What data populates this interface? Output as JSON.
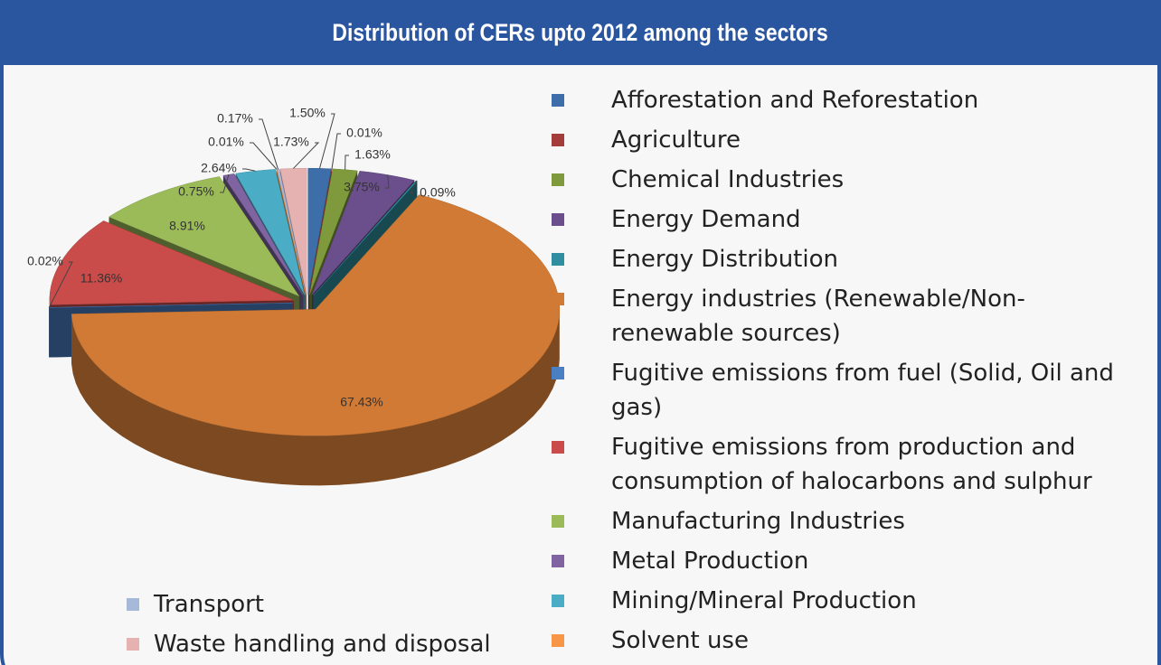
{
  "chart_data": {
    "type": "pie",
    "title": "Distribution of CERs upto 2012 among the sectors",
    "categories": [
      "Afforestation and Reforestation",
      "Agriculture",
      "Chemical Industries",
      "Energy Demand",
      "Energy Distribution",
      "Energy industries (Renewable/Non-renewable sources)",
      "Fugitive emissions from fuel (Solid, Oil and gas)",
      "Fugitive emissions from production and consumption of halocarbons and sulphur",
      "Manufacturing Industries",
      "Metal Production",
      "Mining/Mineral Production",
      "Solvent use",
      "Transport",
      "Waste handling and disposal"
    ],
    "values": [
      1.5,
      0.01,
      1.63,
      3.75,
      0.09,
      67.43,
      0.02,
      11.36,
      8.91,
      0.75,
      2.64,
      0.01,
      0.17,
      1.73
    ],
    "value_labels": [
      "1.50%",
      "0.01%",
      "1.63%",
      "3.75%",
      "0.09%",
      "67.43%",
      "0.02%",
      "11.36%",
      "8.91%",
      "0.75%",
      "2.64%",
      "0.01%",
      "0.17%",
      "1.73%"
    ],
    "colors": [
      "#3e6eaa",
      "#a33c3a",
      "#7f9a3c",
      "#6a4f8c",
      "#2f8fa0",
      "#d07a35",
      "#4a7fc4",
      "#c94c4a",
      "#9bbb59",
      "#8064a2",
      "#4bacc6",
      "#f79646",
      "#a7b9d9",
      "#e6b2b1"
    ]
  }
}
